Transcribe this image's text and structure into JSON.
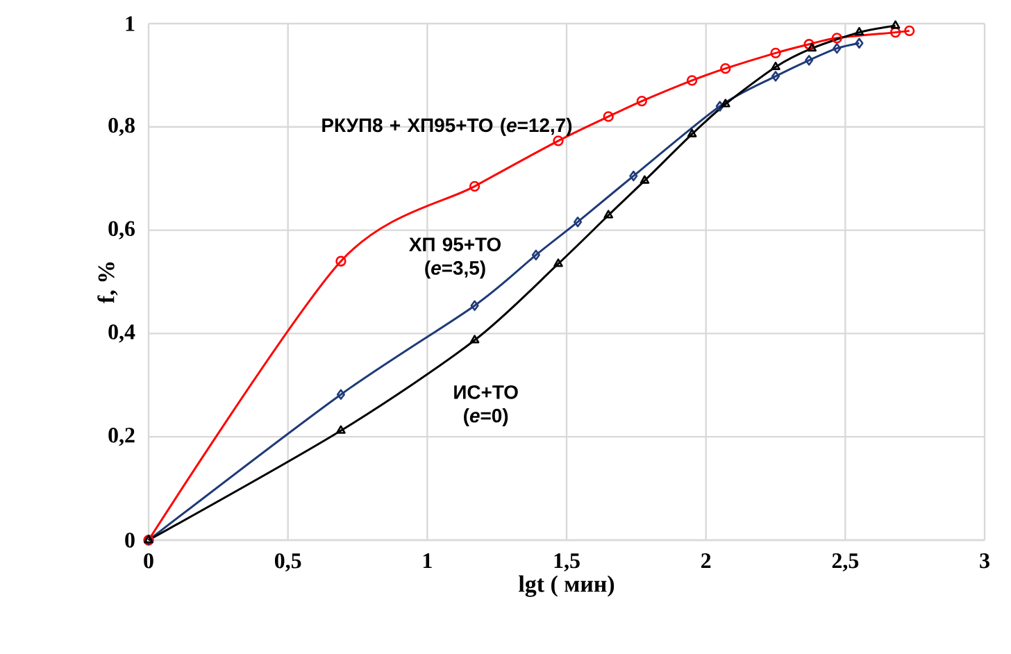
{
  "chart_data": {
    "type": "line",
    "xlabel": "lgt ( мин)",
    "ylabel": "f, %",
    "xlim": [
      0,
      3
    ],
    "ylim": [
      0,
      1
    ],
    "xticks": [
      0,
      {
        "value": 0.5,
        "label": "0,5"
      },
      1,
      {
        "value": 1.5,
        "label": "1,5"
      },
      2,
      {
        "value": 2.5,
        "label": "2,5"
      },
      3
    ],
    "yticks": [
      0,
      {
        "value": 0.2,
        "label": "0,2"
      },
      {
        "value": 0.4,
        "label": "0,4"
      },
      {
        "value": 0.6,
        "label": "0,6"
      },
      {
        "value": 0.8,
        "label": "0,8"
      },
      1
    ],
    "grid": true,
    "series": [
      {
        "name": "РКУП8 + ХП95+ТО (*e*=12,7)",
        "color": "#ff0000",
        "marker": "circle",
        "x": [
          0,
          0.69,
          1.17,
          1.47,
          1.65,
          1.77,
          1.95,
          2.07,
          2.25,
          2.37,
          2.47,
          2.68,
          2.73
        ],
        "values": [
          0,
          0.54,
          0.685,
          0.773,
          0.82,
          0.85,
          0.89,
          0.913,
          0.943,
          0.96,
          0.972,
          0.983,
          0.986
        ]
      },
      {
        "name": "ХП 95+ТО (*e*=3,5)",
        "color": "#1f3a78",
        "marker": "diamond",
        "x": [
          0,
          0.69,
          1.17,
          1.39,
          1.54,
          1.74,
          2.05,
          2.25,
          2.37,
          2.47,
          2.55
        ],
        "values": [
          0,
          0.282,
          0.454,
          0.552,
          0.616,
          0.705,
          0.84,
          0.898,
          0.929,
          0.952,
          0.962
        ]
      },
      {
        "name": "ИС+ТО (*e*=0)",
        "color": "#000000",
        "marker": "triangle",
        "x": [
          0,
          0.69,
          1.17,
          1.47,
          1.65,
          1.78,
          1.95,
          2.07,
          2.25,
          2.38,
          2.55,
          2.68
        ],
        "values": [
          0,
          0.212,
          0.387,
          0.535,
          0.629,
          0.696,
          0.786,
          0.844,
          0.916,
          0.952,
          0.983,
          0.996
        ]
      }
    ]
  }
}
